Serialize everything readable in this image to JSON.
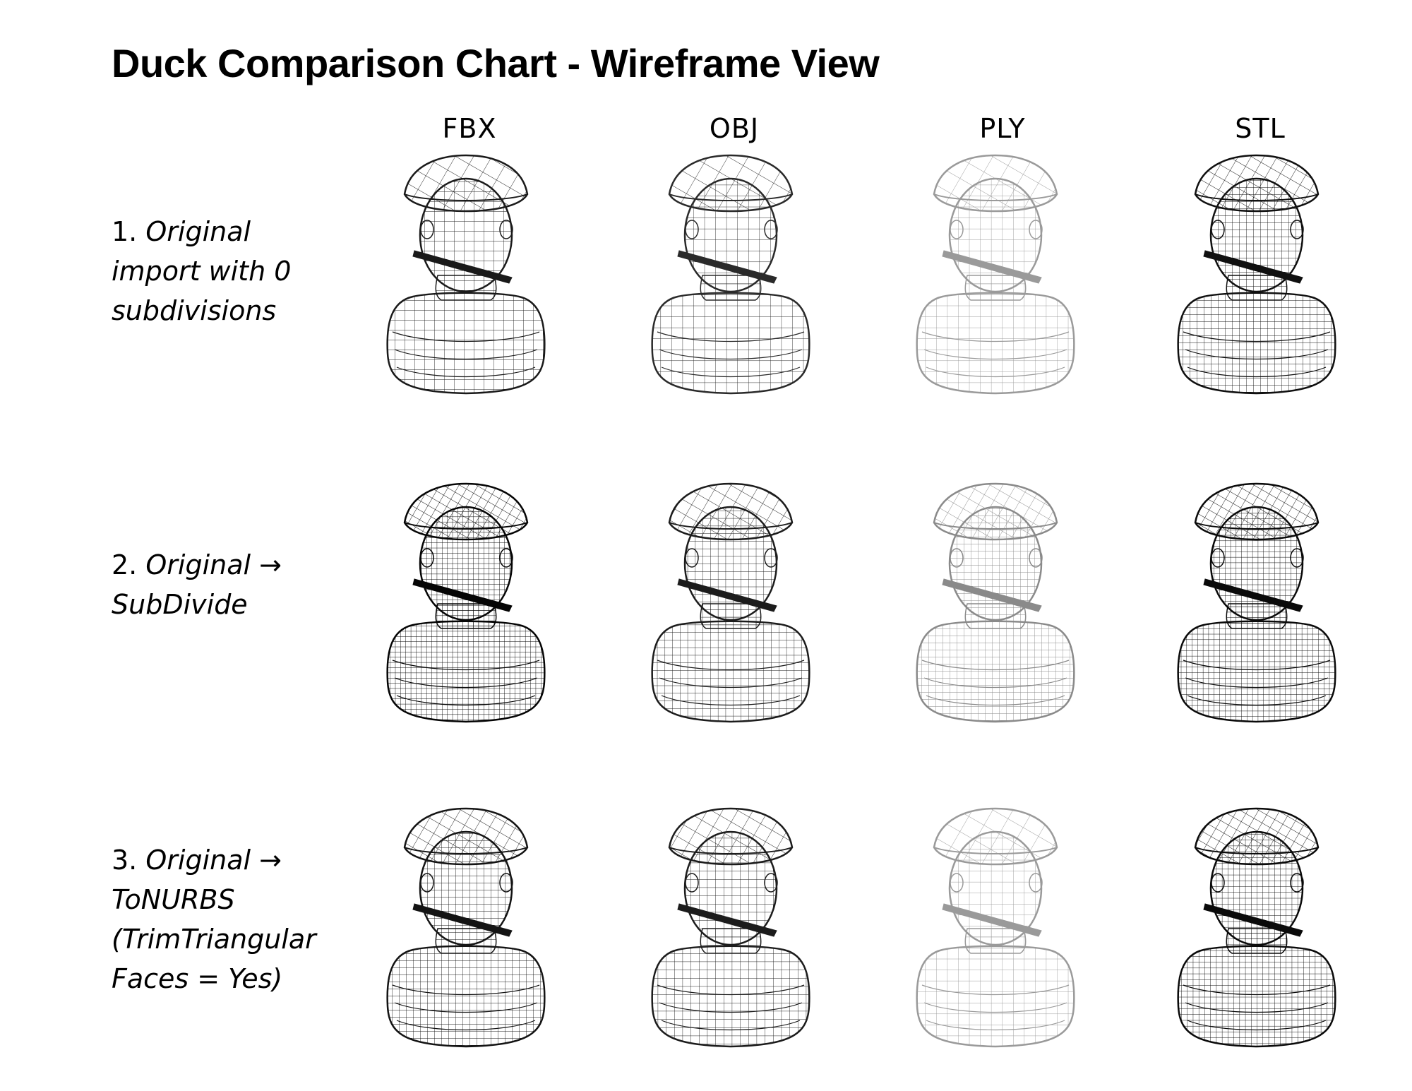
{
  "title": "Duck Comparison Chart - Wireframe View",
  "columns": [
    "FBX",
    "OBJ",
    "PLY",
    "STL"
  ],
  "rows": [
    {
      "number": "1.",
      "label": "Original import with 0 subdivisions",
      "lines": [
        "Original",
        "import with 0",
        "subdivisions"
      ]
    },
    {
      "number": "2.",
      "label": "Original → SubDivide",
      "lines": [
        "Original →",
        "SubDivide"
      ]
    },
    {
      "number": "3.",
      "label": "Original → ToNURBS (TrimTriangular Faces = Yes)",
      "lines": [
        "Original →",
        "ToNURBS",
        "(TrimTriangular",
        "Faces = Yes)"
      ]
    }
  ],
  "wire_colors": {
    "FBX": [
      "#1a1a1a",
      "#050505",
      "#141414"
    ],
    "OBJ": [
      "#2a2a2a",
      "#1c1c1c",
      "#1c1c1c"
    ],
    "PLY": [
      "#9a9a9a",
      "#8a8a8a",
      "#9a9a9a"
    ],
    "STL": [
      "#101010",
      "#0a0a0a",
      "#0a0a0a"
    ]
  },
  "wire_density": {
    "FBX": [
      1.0,
      1.9,
      1.4
    ],
    "OBJ": [
      0.9,
      1.3,
      1.2
    ],
    "PLY": [
      0.9,
      1.4,
      0.9
    ],
    "STL": [
      1.4,
      1.8,
      1.7
    ]
  }
}
